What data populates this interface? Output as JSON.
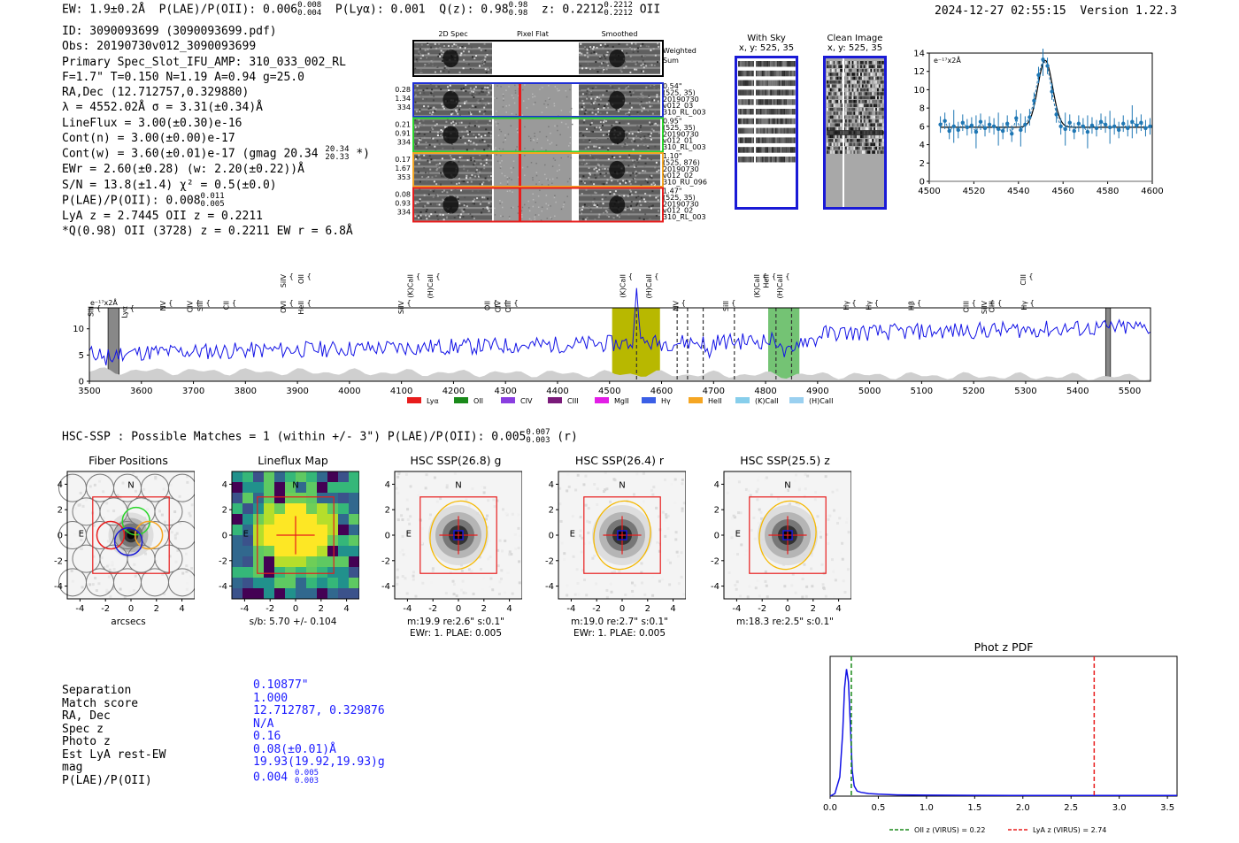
{
  "header": {
    "ew": "EW: 1.9±0.2Å",
    "plae": "P(LAE)/P(OII): 0.006",
    "plae_hi": "0.008",
    "plae_lo": "0.004",
    "plya": "P(Lyα): 0.001",
    "qz": "Q(z): 0.98",
    "qz_hi": "0.98",
    "qz_lo": "0.98",
    "z": "z: 0.2212",
    "z_hi": "0.2212",
    "z_lo": "0.2212",
    "z_line": "OII",
    "timestamp": "2024-12-27 02:55:15",
    "version": "Version 1.22.3"
  },
  "summary": {
    "id": "ID: 3090093699 (3090093699.pdf)",
    "obs": "Obs: 20190730v012_3090093699",
    "primary": "Primary Spec_Slot_IFU_AMP: 310_033_002_RL",
    "params": "F=1.7\"  T=0.150  N=1.19  A=0.94  g=25.0",
    "radec": "RA,Dec (12.712757,0.329880)",
    "lambda": "λ = 4552.02Å  σ = 3.31(±0.34)Å",
    "lineflux": "LineFlux = 3.00(±0.30)e-16",
    "contn": "Cont(n) = 3.00(±0.00)e-17",
    "contw": "Cont(w) = 3.60(±0.01)e-17 (gmag 20.34",
    "contw_hi": "20.34",
    "contw_lo": "20.33",
    "contw_end": " *)",
    "ewr": "EWr = 2.60(±0.28) (w: 2.20(±0.22))Å",
    "sn": "S/N = 13.8(±1.4)  χ² = 0.5(±0.0)",
    "plae": "P(LAE)/P(OII): 0.008",
    "plae_hi": "0.011",
    "plae_lo": "0.005",
    "lya": "LyA z = 2.7445  OII z = 0.2211",
    "q": "*Q(0.98) OII (3728) z = 0.2211  EW r = 6.8Å"
  },
  "cutouts": {
    "col_titles": [
      "2D Spec",
      "Pixel Flat",
      "Smoothed"
    ],
    "weighted": "Weighted Sum",
    "rows": [
      {
        "w": "0.28",
        "t": "1.34",
        "n": "334",
        "info": [
          "0.54\"",
          "(525, 35)",
          "20190730",
          "v012_03",
          "310_RL_003"
        ],
        "color": "#1f2fd6"
      },
      {
        "w": "0.21",
        "t": "0.91",
        "n": "334",
        "info": [
          "0.95\"",
          "(525, 35)",
          "20190730",
          "v012_01",
          "310_RL_003"
        ],
        "color": "#2bd62b"
      },
      {
        "w": "0.17",
        "t": "1.67",
        "n": "353",
        "info": [
          "1.10\"",
          "(525, 876)",
          "20190730",
          "v012_02",
          "310_RU_096"
        ],
        "color": "#f5a623"
      },
      {
        "w": "0.08",
        "t": "0.93",
        "n": "334",
        "info": [
          "1.47\"",
          "(525, 35)",
          "20190730",
          "v012_02",
          "310_RL_003"
        ],
        "color": "#e81c1c"
      }
    ]
  },
  "with_sky": {
    "title": "With Sky",
    "coords": "x, y: 525, 35"
  },
  "clean_image": {
    "title": "Clean Image",
    "coords": "x, y: 525, 35"
  },
  "line_fit": {
    "ylabel": "e⁻¹⁷x2Å",
    "color_data": "#1f77b4",
    "color_fit": "#000000",
    "chart_data": {
      "type": "line",
      "x": [
        4505,
        4507,
        4509,
        4511,
        4513,
        4515,
        4517,
        4519,
        4521,
        4523,
        4525,
        4527,
        4529,
        4531,
        4533,
        4535,
        4537,
        4539,
        4541,
        4543,
        4545,
        4547,
        4549,
        4551,
        4553,
        4555,
        4557,
        4559,
        4561,
        4563,
        4565,
        4567,
        4569,
        4571,
        4573,
        4575,
        4577,
        4579,
        4581,
        4583,
        4585,
        4587,
        4589,
        4591,
        4593,
        4595,
        4597,
        4599
      ],
      "y": [
        6.2,
        6.6,
        5.5,
        6.0,
        5.6,
        6.4,
        5.9,
        6.1,
        5.4,
        6.5,
        5.8,
        6.2,
        6.0,
        5.7,
        5.5,
        6.3,
        5.2,
        6.9,
        5.6,
        6.2,
        7.0,
        8.8,
        11.6,
        13.3,
        12.6,
        9.8,
        7.3,
        6.0,
        5.7,
        6.4,
        5.5,
        6.3,
        6.0,
        5.4,
        6.1,
        5.8,
        6.5,
        6.2,
        5.9,
        6.0,
        5.6,
        6.3,
        5.8,
        6.5,
        6.1,
        6.4,
        5.8,
        6.0
      ],
      "xlim": [
        4500,
        4600
      ],
      "ylim": [
        0,
        14
      ],
      "xticks": [
        4500,
        4520,
        4540,
        4560,
        4580,
        4600
      ],
      "yticks": [
        0,
        2,
        4,
        6,
        8,
        10,
        12,
        14
      ]
    }
  },
  "spectrum": {
    "ylabel": "e⁻¹⁷x2Å",
    "chart_data": {
      "type": "line",
      "xlim": [
        3500,
        5540
      ],
      "ylim": [
        0,
        14
      ],
      "xticks": [
        3500,
        3600,
        3700,
        3800,
        3900,
        4000,
        4100,
        4200,
        4300,
        4400,
        4500,
        4600,
        4700,
        4800,
        4900,
        5000,
        5100,
        5200,
        5300,
        5400,
        5500
      ],
      "yticks": [
        0,
        5,
        10
      ],
      "highlight_yellow": [
        4505,
        4597
      ],
      "highlight_green": [
        [
          4805,
          4865
        ]
      ],
      "dark_bands": [
        [
          3536,
          3557
        ],
        [
          5454,
          5463
        ]
      ],
      "dashed_black": [
        4552,
        4630,
        4650,
        4680,
        4740,
        4820,
        4850
      ],
      "line_labels": [
        {
          "label": "SiII",
          "x": 3508,
          "color": "#f5a623",
          "level": 3
        },
        {
          "label": "Lyα",
          "x": 3572,
          "color": "#7e2fe0",
          "level": 3
        },
        {
          "label": "NV",
          "x": 3646,
          "color": "#7e2fe0",
          "level": 2
        },
        {
          "label": "CIV",
          "x": 3698,
          "color": "#7e2fe0",
          "level": 2
        },
        {
          "label": "SiII",
          "x": 3718,
          "color": "#7e2fe0",
          "level": 2
        },
        {
          "label": "CII",
          "x": 3768,
          "color": "#e21ee6",
          "level": 2
        },
        {
          "label": "SiIV",
          "x": 3878,
          "color": "#f5a623",
          "level": 1
        },
        {
          "label": "OVI",
          "x": 3878,
          "color": "#e81c1c",
          "level": 2
        },
        {
          "label": "OII",
          "x": 3912,
          "color": "#1f2fd6",
          "level": 1
        },
        {
          "label": "HeII",
          "x": 3912,
          "color": "#e81c1c",
          "level": 2
        },
        {
          "label": "SiIV",
          "x": 4104,
          "color": "#7e2fe0",
          "level": 2
        },
        {
          "label": "(K)CaII",
          "x": 4122,
          "color": "#1f2fd6",
          "level": 1
        },
        {
          "label": "(H)CaII",
          "x": 4160,
          "color": "#1f2fd6",
          "level": 1
        },
        {
          "label": "OII",
          "x": 4270,
          "color": "#87ceeb",
          "level": 2
        },
        {
          "label": "CIV",
          "x": 4290,
          "color": "#f5a623",
          "level": 2
        },
        {
          "label": "OIII",
          "x": 4310,
          "color": "#87ceeb",
          "level": 2
        },
        {
          "label": "(K)CaII",
          "x": 4530,
          "color": "#87ceeb",
          "level": 1
        },
        {
          "label": "(H)CaII",
          "x": 4580,
          "color": "#87ceeb",
          "level": 1
        },
        {
          "label": "NV",
          "x": 4632,
          "color": "#e81c1c",
          "level": 2
        },
        {
          "label": "SiII",
          "x": 4728,
          "color": "#e81c1c",
          "level": 2
        },
        {
          "label": "(K)CaII",
          "x": 4788,
          "color": "#2bd62b",
          "level": 1
        },
        {
          "label": "HeII",
          "x": 4806,
          "color": "#7e2fe0",
          "level": 1
        },
        {
          "label": "(H)CaII",
          "x": 4832,
          "color": "#2bd62b",
          "level": 1
        },
        {
          "label": "Hγ",
          "x": 4960,
          "color": "#87ceeb",
          "level": 2
        },
        {
          "label": "Hγ",
          "x": 5003,
          "color": "#87ceeb",
          "level": 2
        },
        {
          "label": "Hβ",
          "x": 5085,
          "color": "#1f2fd6",
          "level": 2
        },
        {
          "label": "OIII",
          "x": 5190,
          "color": "#1f2fd6",
          "level": 2
        },
        {
          "label": "SiIV",
          "x": 5225,
          "color": "#e81c1c",
          "level": 2
        },
        {
          "label": "OIII",
          "x": 5240,
          "color": "#1f2fd6",
          "level": 2
        },
        {
          "label": "CIII",
          "x": 5300,
          "color": "#f5a623",
          "level": 1
        },
        {
          "label": "Hγ",
          "x": 5302,
          "color": "#2bd62b",
          "level": 2
        }
      ],
      "legend": [
        {
          "label": "Lyα",
          "color": "#e81c1c"
        },
        {
          "label": "OII",
          "color": "#1a8a1a"
        },
        {
          "label": "CIV",
          "color": "#8a3ee0"
        },
        {
          "label": "CIII",
          "color": "#7a1a7a"
        },
        {
          "label": "MgII",
          "color": "#e21ee6"
        },
        {
          "label": "Hγ",
          "color": "#3b5fe6"
        },
        {
          "label": "HeII",
          "color": "#f5a623"
        },
        {
          "label": "(K)CaII",
          "color": "#87ceeb"
        },
        {
          "label": "(H)CaII",
          "color": "#9ad0f0"
        }
      ]
    }
  },
  "hsc": {
    "title": "HSC-SSP : Possible Matches = 1 (within +/- 3\")  P(LAE)/P(OII): 0.005",
    "plae_hi": "0.007",
    "plae_lo": "0.003",
    "band": " (r)"
  },
  "stamps": [
    {
      "title": "Fiber Positions",
      "xlabel": "arcsecs",
      "sub1": "",
      "sub2": ""
    },
    {
      "title": "Lineflux Map",
      "xlabel": "",
      "sub1": "s/b: 5.70 +/- 0.104",
      "sub2": ""
    },
    {
      "title": "HSC SSP(26.8) g",
      "xlabel": "",
      "sub1": "m:19.9  re:2.6\"  s:0.1\"",
      "sub2": "EWr: 1. PLAE: 0.005"
    },
    {
      "title": "HSC SSP(26.4) r",
      "xlabel": "",
      "sub1": "m:19.0  re:2.7\"  s:0.1\"",
      "sub2": "EWr: 1. PLAE: 0.005"
    },
    {
      "title": "HSC SSP(25.5) z",
      "xlabel": "",
      "sub1": "m:18.3  re:2.5\"  s:0.1\"",
      "sub2": ""
    }
  ],
  "stamp_axes": {
    "ticks": [
      4,
      2,
      0,
      -2,
      -4
    ],
    "compass_n": "N",
    "compass_e": "E"
  },
  "match_table": {
    "labels": [
      "Separation",
      "Match score",
      "RA, Dec",
      "Spec z",
      "Photo z",
      "Est LyA rest-EW",
      "mag",
      "P(LAE)/P(OII)"
    ],
    "values": [
      "0.10877\"",
      "1.000",
      "12.712787, 0.329876",
      "N/A",
      "0.16",
      "0.08(±0.01)Å",
      "19.93(19.92,19.93)g",
      "0.004"
    ],
    "plae_hi": "0.005",
    "plae_lo": "0.003"
  },
  "photz": {
    "title": "Phot z PDF",
    "legend_oii": "OII z (VIRUS) = 0.22",
    "legend_lya": "LyA z (VIRUS) = 2.74",
    "chart_data": {
      "type": "line",
      "x": [
        0.0,
        0.05,
        0.1,
        0.13,
        0.15,
        0.17,
        0.19,
        0.21,
        0.23,
        0.25,
        0.28,
        0.32,
        0.4,
        0.5,
        0.7,
        1.0,
        1.5,
        2.0,
        2.5,
        3.0,
        3.5,
        3.6
      ],
      "y": [
        0.0,
        0.02,
        0.15,
        0.5,
        0.85,
        1.0,
        0.9,
        0.55,
        0.2,
        0.08,
        0.04,
        0.03,
        0.02,
        0.015,
        0.01,
        0.008,
        0.006,
        0.005,
        0.005,
        0.005,
        0.005,
        0.005
      ],
      "xlim": [
        0.0,
        3.6
      ],
      "ylim": [
        0,
        1.1
      ],
      "xticks": [
        0.0,
        0.5,
        1.0,
        1.5,
        2.0,
        2.5,
        3.0,
        3.5
      ],
      "vlines": [
        {
          "x": 0.22,
          "color": "#1a8a1a",
          "name": "OII"
        },
        {
          "x": 2.74,
          "color": "#e81c1c",
          "name": "LyA"
        }
      ]
    }
  }
}
